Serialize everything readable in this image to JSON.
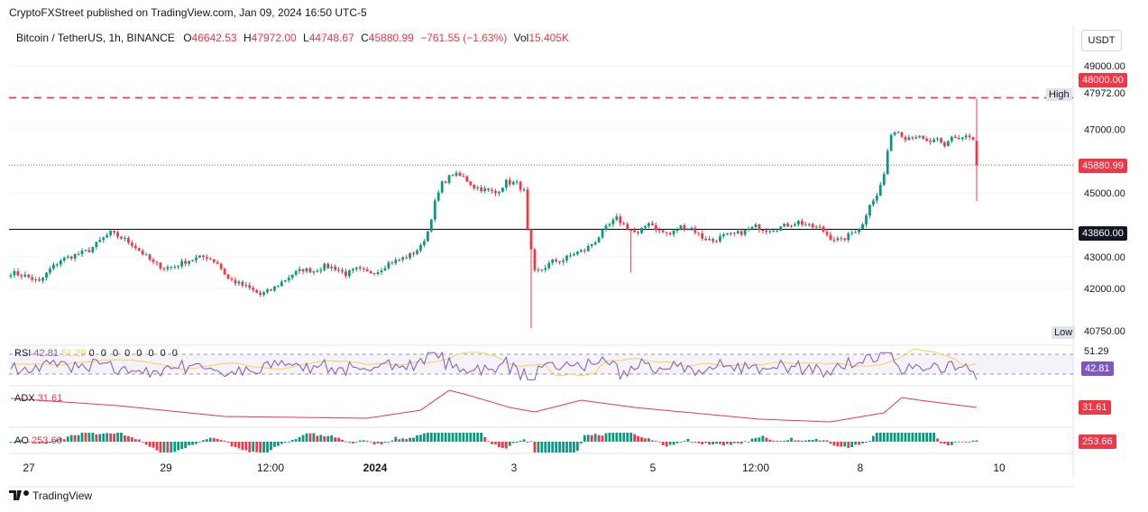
{
  "header": {
    "published": "CryptoFXStreet published on TradingView.com, Jan 09, 2024 16:50 UTC-5"
  },
  "legend": {
    "symbol": "Bitcoin / TetherUS, 1h, BINANCE",
    "o_label": "O",
    "o_value": "46642.53",
    "h_label": "H",
    "h_value": "47972.00",
    "l_label": "L",
    "l_value": "44748.67",
    "c_label": "C",
    "c_value": "45880.99",
    "change": "−761.55 (−1.63%)",
    "vol_label": "Vol",
    "vol_value": "15.405K"
  },
  "currency_button": "USDT",
  "axis_labels": {
    "high_label": "High",
    "high_value": "47972.00",
    "low_label": "Low",
    "low_value": "40750.00",
    "resistance_value": "48000.00",
    "last_price": "45880.99",
    "support_value": "43860.00"
  },
  "indicators": {
    "rsi": {
      "label": "RSI",
      "value": "42.81",
      "ma_value": "51.29",
      "zeros": "0 0 0 0 0 0 0 0"
    },
    "adx": {
      "label": "ADX",
      "value": "31.61"
    },
    "ao": {
      "label": "AO",
      "value": "253.66"
    }
  },
  "colors": {
    "up": "#089981",
    "down": "#f23645",
    "resistance": "#f23645",
    "support": "#131722",
    "rsi_line": "#7e57c2",
    "rsi_ma": "#f7d154",
    "adx_line": "#f23645"
  },
  "footer": {
    "brand": "TradingView",
    "logo_icon": "tradingview-logo-icon"
  },
  "chart_data": {
    "type": "candlestick",
    "title": "Bitcoin / TetherUS, 1h, BINANCE",
    "y_ticks": [
      42000,
      43000,
      45000,
      47000,
      49000
    ],
    "ylim": [
      40300,
      49600
    ],
    "x_ticks": [
      "27",
      "29",
      "12:00",
      "2024",
      "3",
      "5",
      "12:00",
      "8",
      "10"
    ],
    "horizontal_lines": [
      {
        "name": "resistance",
        "value": 48000,
        "style": "dashed"
      },
      {
        "name": "support",
        "value": 43860,
        "style": "solid"
      },
      {
        "name": "last",
        "value": 45880.99,
        "style": "dotted"
      }
    ],
    "price_path": [
      [
        0,
        42500
      ],
      [
        4,
        42400
      ],
      [
        8,
        42200
      ],
      [
        11,
        42600
      ],
      [
        14,
        42900
      ],
      [
        18,
        43050
      ],
      [
        22,
        43200
      ],
      [
        25,
        43500
      ],
      [
        28,
        43750
      ],
      [
        31,
        43600
      ],
      [
        34,
        43400
      ],
      [
        37,
        43100
      ],
      [
        40,
        42800
      ],
      [
        43,
        42650
      ],
      [
        46,
        42700
      ],
      [
        49,
        42850
      ],
      [
        52,
        42950
      ],
      [
        55,
        43000
      ],
      [
        58,
        42800
      ],
      [
        61,
        42300
      ],
      [
        64,
        42150
      ],
      [
        67,
        42000
      ],
      [
        70,
        41800
      ],
      [
        73,
        41950
      ],
      [
        76,
        42200
      ],
      [
        79,
        42450
      ],
      [
        82,
        42600
      ],
      [
        85,
        42550
      ],
      [
        88,
        42700
      ],
      [
        91,
        42650
      ],
      [
        94,
        42450
      ],
      [
        97,
        42600
      ],
      [
        100,
        42500
      ],
      [
        103,
        42550
      ],
      [
        106,
        42800
      ],
      [
        109,
        42900
      ],
      [
        112,
        43050
      ],
      [
        115,
        43300
      ],
      [
        117,
        43800
      ],
      [
        119,
        44700
      ],
      [
        121,
        45300
      ],
      [
        124,
        45600
      ],
      [
        127,
        45500
      ],
      [
        130,
        45200
      ],
      [
        133,
        45100
      ],
      [
        136,
        45000
      ],
      [
        139,
        45350
      ],
      [
        142,
        45300
      ],
      [
        144,
        45050
      ],
      [
        145,
        43800
      ],
      [
        147,
        42500
      ],
      [
        149,
        42600
      ],
      [
        152,
        42850
      ],
      [
        155,
        42900
      ],
      [
        158,
        43100
      ],
      [
        161,
        43200
      ],
      [
        164,
        43500
      ],
      [
        167,
        43900
      ],
      [
        170,
        44200
      ],
      [
        173,
        43900
      ],
      [
        176,
        43700
      ],
      [
        179,
        44100
      ],
      [
        182,
        43800
      ],
      [
        185,
        43700
      ],
      [
        188,
        43950
      ],
      [
        191,
        43900
      ],
      [
        194,
        43600
      ],
      [
        197,
        43500
      ],
      [
        200,
        43650
      ],
      [
        203,
        43700
      ],
      [
        206,
        43800
      ],
      [
        209,
        43950
      ],
      [
        212,
        43850
      ],
      [
        215,
        43900
      ],
      [
        218,
        44000
      ],
      [
        221,
        44100
      ],
      [
        224,
        43950
      ],
      [
        227,
        43900
      ],
      [
        230,
        43600
      ],
      [
        233,
        43500
      ],
      [
        236,
        43750
      ],
      [
        239,
        44000
      ],
      [
        241,
        44700
      ],
      [
        243,
        44900
      ],
      [
        245,
        45600
      ],
      [
        247,
        46900
      ],
      [
        249,
        46950
      ],
      [
        251,
        46750
      ],
      [
        254,
        46800
      ],
      [
        257,
        46600
      ],
      [
        260,
        46650
      ],
      [
        262,
        46450
      ],
      [
        264,
        46800
      ],
      [
        266,
        46700
      ],
      [
        268,
        46800
      ],
      [
        270,
        46650
      ],
      [
        271,
        45881
      ]
    ],
    "last_candle": {
      "open": 46642.53,
      "high": 47972.0,
      "low": 44748.67,
      "close": 45880.99
    },
    "low_wicks": [
      {
        "index": 146,
        "value": 40750
      },
      {
        "index": 174,
        "value": 42500
      }
    ]
  }
}
